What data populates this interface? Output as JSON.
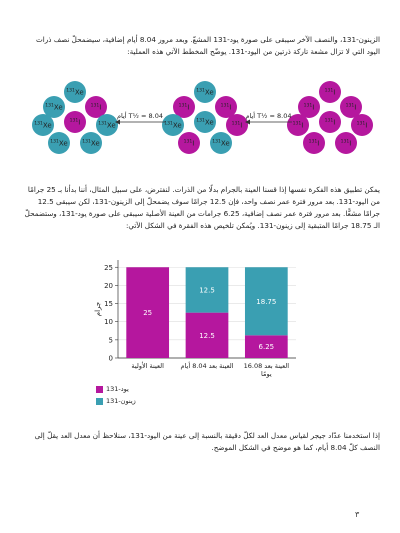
{
  "paragraphs": [
    "الزينون-131، والنصف الآخر سيبقى على صورة يود-131 المشعّ. وبعد مرور 8.04 أيام إضافية، سيضمحلّ نصف ذرات اليود التي لا تزال مشعة تاركة ذرتين من اليود-131. يوضّح المخطط الآتي هذه العملية:",
    "يمكن تطبيق هذه الفكرة نفسها إذا قسنا العينة بالجرام بدلًا من الذرات. لنفترض، على سبيل المثال، أننا بدأنا بـ 25 جرامًا من اليود-131. بعد مرور فترة عمر نصف واحد، فإن 12.5 جرامًا سوف يضمحلّ إلى الزينون-131، لكن سيبقى 12.5 جرامًا مشعًّا. بعد مرور فترة عمر نصف إضافية، 6.25 جرامات من العينة الأصلية سيبقى على صورة يود-131، وستضمحلّ الـ 18.75 جرامًا المتبقية إلى زينون-131. ويُمكن تلخيص هذه الفقرة في الشكل الآتي:",
    "إذا استخدمنا عدّاد جيجر لقياس معدل العد لكلّ دقيقة بالنسبة إلى عينة من اليود-131، سنلاحظ أن معدل العد يقلّ إلى النصف كلّ 8.04 أيام، كما هو موضح في الشكل الموضح."
  ],
  "diagram": {
    "arrow_label": "T½ = 8.04 أيام",
    "colors": {
      "I": "#b5179e",
      "Xe": "#3a9fb2"
    },
    "groups": [
      [
        {
          "mass": "131",
          "symbol": "Xe"
        },
        {
          "mass": "131",
          "symbol": "Xe"
        },
        {
          "mass": "131",
          "symbol": "I"
        },
        {
          "mass": "131",
          "symbol": "Xe"
        },
        {
          "mass": "131",
          "symbol": "I"
        },
        {
          "mass": "131",
          "symbol": "Xe"
        },
        {
          "mass": "131",
          "symbol": "Xe"
        },
        {
          "mass": "131",
          "symbol": "Xe"
        }
      ],
      [
        {
          "mass": "131",
          "symbol": "Xe"
        },
        {
          "mass": "131",
          "symbol": "I"
        },
        {
          "mass": "131",
          "symbol": "I"
        },
        {
          "mass": "131",
          "symbol": "Xe"
        },
        {
          "mass": "131",
          "symbol": "Xe"
        },
        {
          "mass": "131",
          "symbol": "I"
        },
        {
          "mass": "131",
          "symbol": "I"
        },
        {
          "mass": "131",
          "symbol": "Xe"
        }
      ],
      [
        {
          "mass": "131",
          "symbol": "I"
        },
        {
          "mass": "131",
          "symbol": "I"
        },
        {
          "mass": "131",
          "symbol": "I"
        },
        {
          "mass": "131",
          "symbol": "I"
        },
        {
          "mass": "131",
          "symbol": "I"
        },
        {
          "mass": "131",
          "symbol": "I"
        },
        {
          "mass": "131",
          "symbol": "I"
        },
        {
          "mass": "131",
          "symbol": "I"
        }
      ]
    ]
  },
  "chart_data": {
    "type": "stacked_bar",
    "y_label": "جرام",
    "categories": [
      "العينة الأولية",
      "العينة بعد 8.04 أيام",
      "العينة بعد 16.08 يومًا"
    ],
    "series": [
      {
        "name": "يود-131",
        "color": "#b5179e",
        "values": [
          25,
          12.5,
          6.25
        ]
      },
      {
        "name": "زينون-131",
        "color": "#3a9fb2",
        "values": [
          0,
          12.5,
          18.75
        ]
      }
    ],
    "ylim": [
      0,
      27
    ],
    "yticks": [
      0,
      5,
      10,
      15,
      20,
      25
    ],
    "grid": true
  },
  "page_number": "٣"
}
